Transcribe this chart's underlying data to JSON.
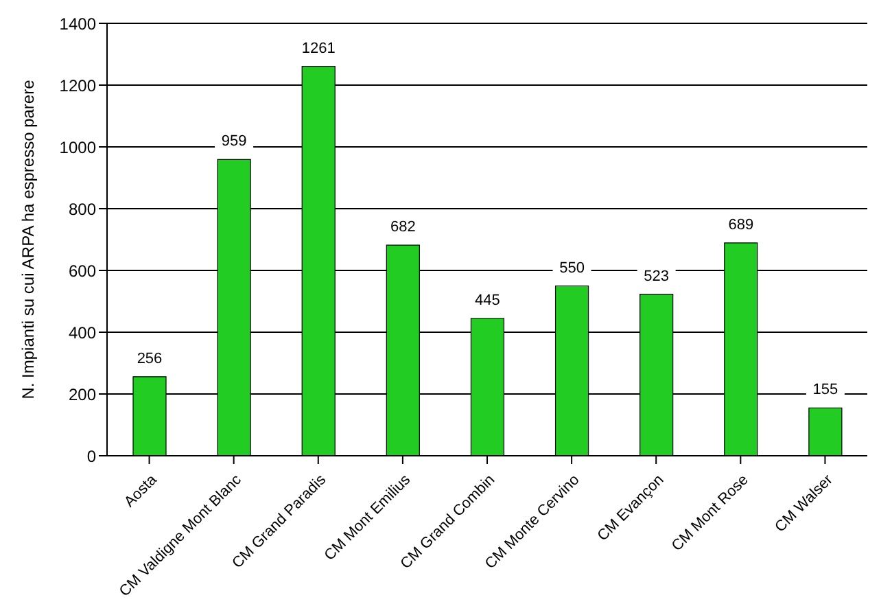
{
  "chart_data": {
    "type": "bar",
    "ylabel": "N. Impianti su cui ARPA ha espresso parere",
    "categories": [
      "Aosta",
      "CM Valdigne Mont Blanc",
      "CM Grand Paradis",
      "CM Mont Emilius",
      "CM Grand Combin",
      "CM Monte Cervino",
      "CM Evançon",
      "CM Mont Rose",
      "CM Walser"
    ],
    "values": [
      256,
      959,
      1261,
      682,
      445,
      550,
      523,
      689,
      155
    ],
    "color": "#22cc22",
    "ylim": [
      0,
      1400
    ],
    "yticks": [
      0,
      200,
      400,
      600,
      800,
      1000,
      1200,
      1400
    ],
    "grid": "y",
    "data_labels": true
  }
}
